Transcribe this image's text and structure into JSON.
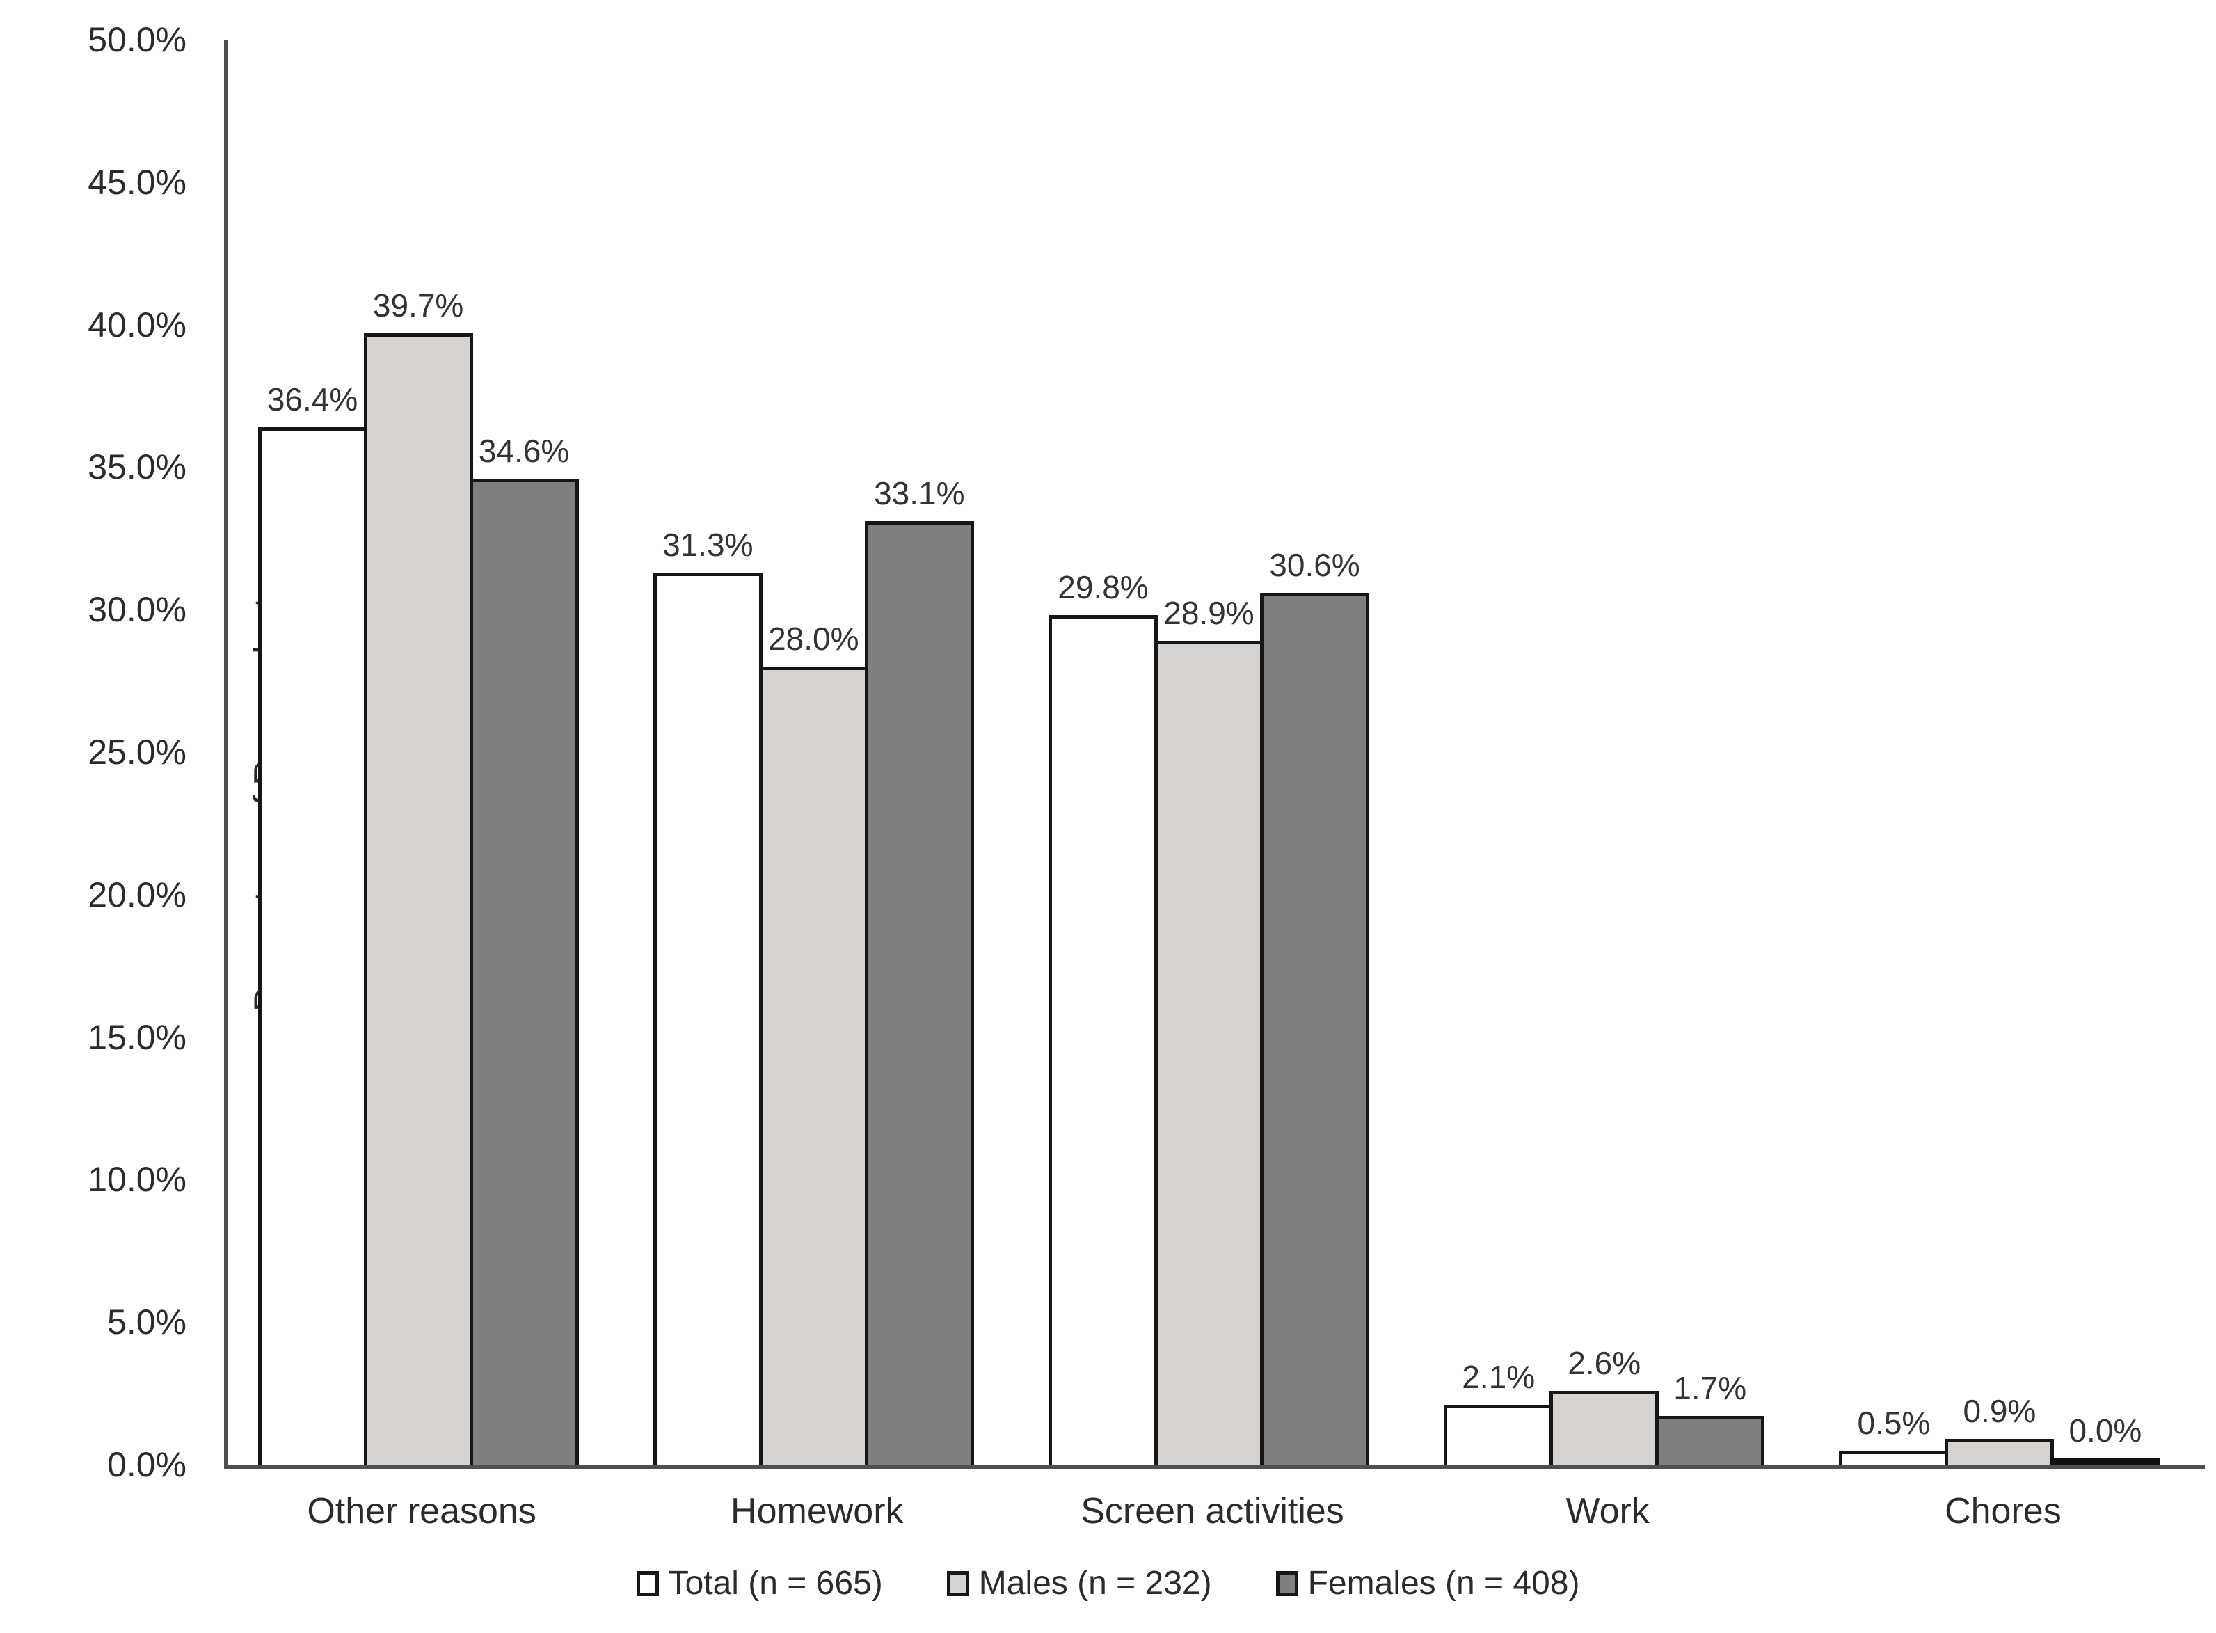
{
  "chart_data": {
    "type": "bar",
    "title": "",
    "xlabel": "",
    "ylabel": "Percentage of Respondents",
    "categories": [
      "Other reasons",
      "Homework",
      "Screen activities",
      "Work",
      "Chores"
    ],
    "series": [
      {
        "name": "Total (n = 665)",
        "fill": "#ffffff",
        "values": [
          36.4,
          31.3,
          29.8,
          2.1,
          0.5
        ],
        "labels": [
          "36.4%",
          "31.3%",
          "29.8%",
          "2.1%",
          "0.5%"
        ]
      },
      {
        "name": "Males (n = 232)",
        "fill": "#d5d2cf",
        "values": [
          39.7,
          28.0,
          28.9,
          2.6,
          0.9
        ],
        "labels": [
          "39.7%",
          "28.0%",
          "28.9%",
          "2.6%",
          "0.9%"
        ]
      },
      {
        "name": "Females (n = 408)",
        "fill": "#7f7f7f",
        "values": [
          34.6,
          33.1,
          30.6,
          1.7,
          0.0
        ],
        "labels": [
          "34.6%",
          "33.1%",
          "30.6%",
          "1.7%",
          "0.0%"
        ]
      }
    ],
    "ylim": [
      0,
      50
    ],
    "ytick_values": [
      0,
      5,
      10,
      15,
      20,
      25,
      30,
      35,
      40,
      45,
      50
    ],
    "ytick_labels": [
      "0.0%",
      "5.0%",
      "10.0%",
      "15.0%",
      "20.0%",
      "25.0%",
      "30.0%",
      "35.0%",
      "40.0%",
      "45.0%",
      "50.0%"
    ],
    "grid": false,
    "legend_position": "bottom",
    "colors": {
      "bar_border": "#161616",
      "axis_line": "#4f4f4f",
      "text": "#2b2b2b"
    }
  }
}
